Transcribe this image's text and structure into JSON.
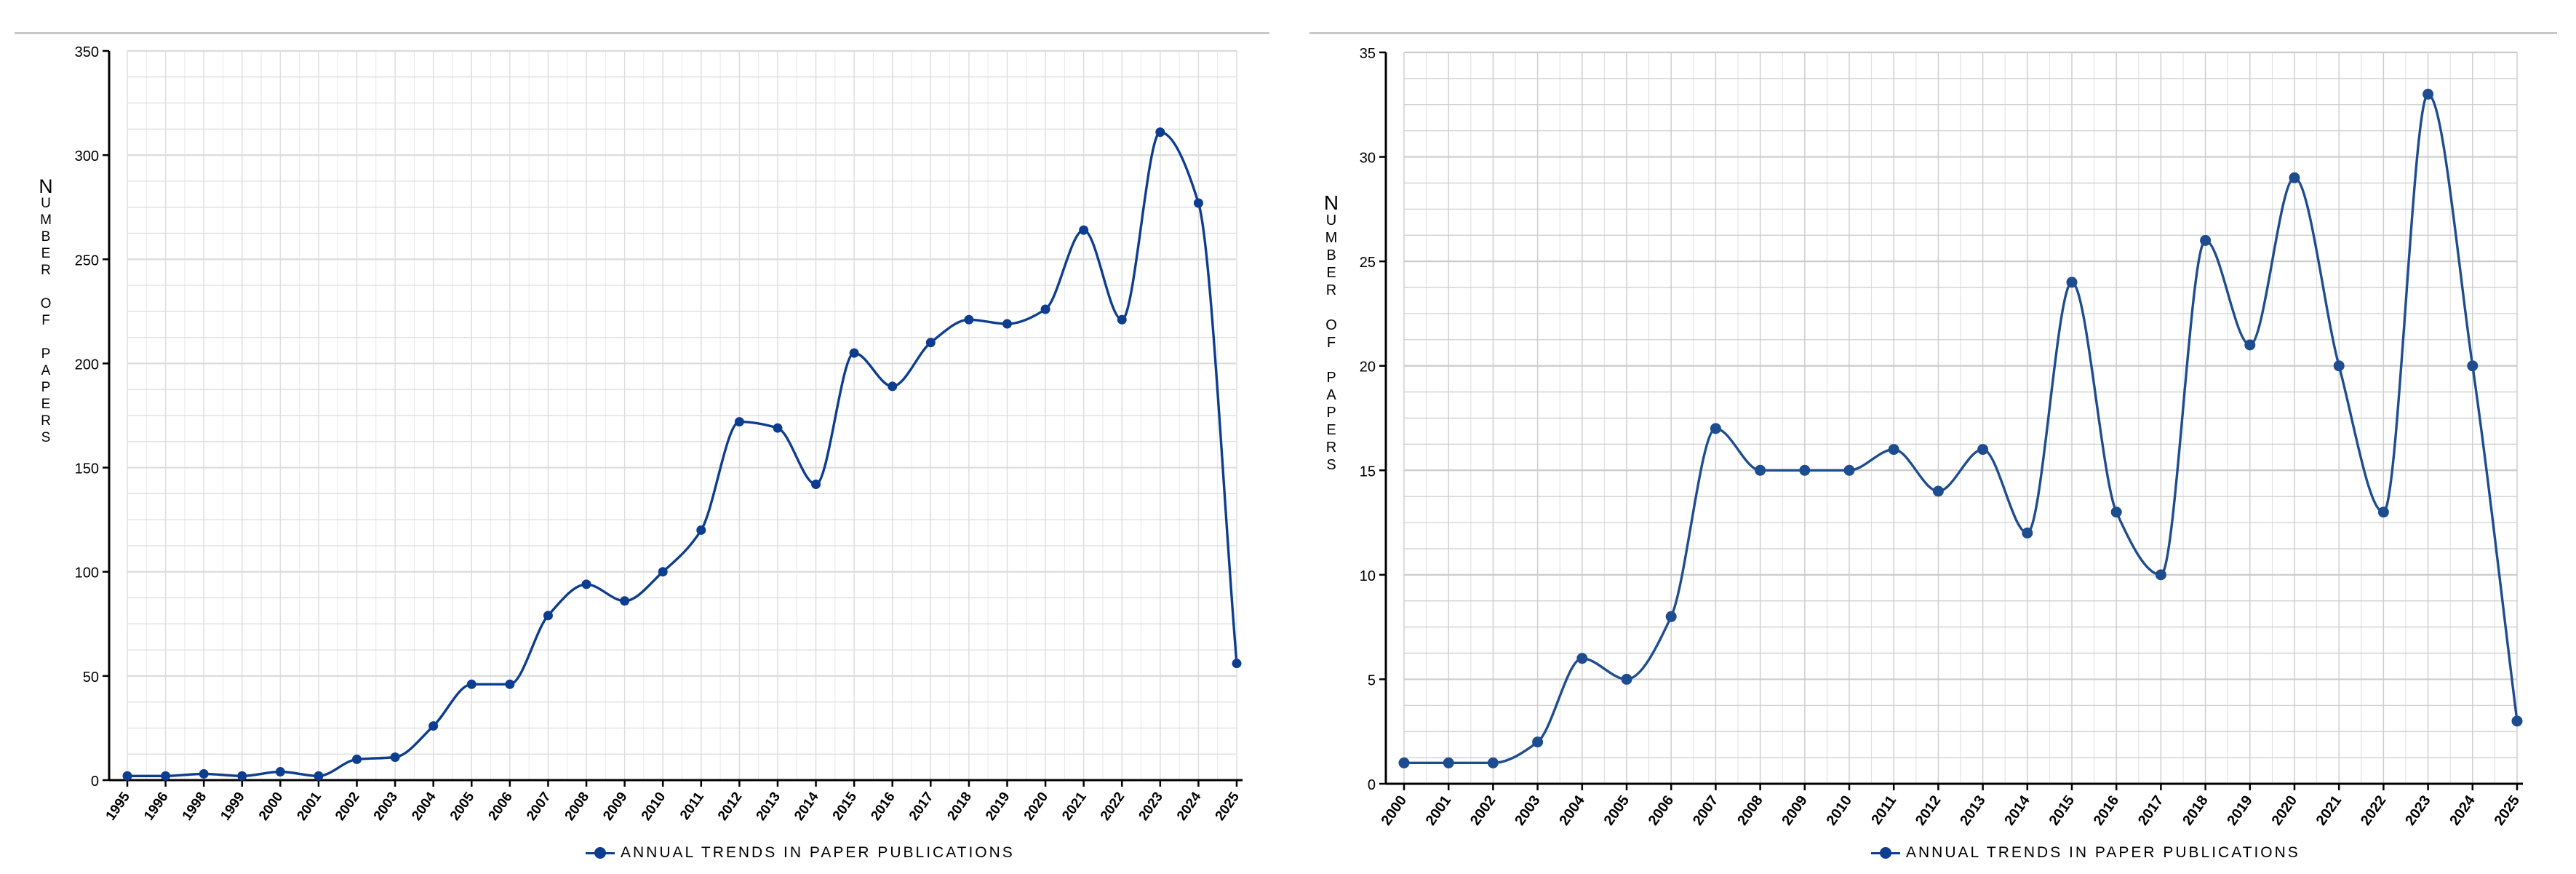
{
  "chart_data": [
    {
      "type": "line",
      "ylabel": "NUMBER OF PAPERS",
      "ylim": [
        0,
        350
      ],
      "yticks": [
        "0",
        "50",
        "100",
        "150",
        "200",
        "250",
        "300",
        "350"
      ],
      "x": [
        "1995",
        "1996",
        "1998",
        "1999",
        "2000",
        "2001",
        "2002",
        "2003",
        "2004",
        "2005",
        "2006",
        "2007",
        "2008",
        "2009",
        "2010",
        "2011",
        "2012",
        "2013",
        "2014",
        "2015",
        "2016",
        "2017",
        "2018",
        "2019",
        "2020",
        "2021",
        "2022",
        "2023",
        "2024",
        "2025"
      ],
      "series": [
        {
          "name": "ANNUAL TRENDS IN PAPER PUBLICATIONS",
          "values": [
            2,
            2,
            3,
            2,
            4,
            2,
            10,
            11,
            26,
            46,
            46,
            79,
            94,
            86,
            100,
            120,
            172,
            169,
            142,
            205,
            189,
            210,
            221,
            219,
            226,
            264,
            221,
            311,
            277,
            56
          ]
        }
      ],
      "grid": true,
      "legend_position": "bottom-center",
      "colors": {
        "line": "#0d3d8f",
        "grid": "#dcdcdc",
        "axis": "#000000"
      }
    },
    {
      "type": "line",
      "ylabel": "NUMBER OF PAPERS",
      "ylim": [
        0,
        35
      ],
      "yticks": [
        "0",
        "5",
        "10",
        "15",
        "20",
        "25",
        "30",
        "35"
      ],
      "x": [
        "2000",
        "2001",
        "2002",
        "2003",
        "2004",
        "2005",
        "2006",
        "2007",
        "2008",
        "2009",
        "2010",
        "2011",
        "2012",
        "2013",
        "2014",
        "2015",
        "2016",
        "2017",
        "2018",
        "2019",
        "2020",
        "2021",
        "2022",
        "2023",
        "2024",
        "2025"
      ],
      "series": [
        {
          "name": "ANNUAL TRENDS IN PAPER PUBLICATIONS",
          "values": [
            1,
            1,
            1,
            2,
            6,
            5,
            8,
            17,
            15,
            15,
            15,
            16,
            14,
            16,
            12,
            24,
            13,
            10,
            26,
            21,
            29,
            20,
            13,
            33,
            20,
            3
          ]
        }
      ],
      "grid": true,
      "legend_position": "bottom-center",
      "colors": {
        "line": "#1e4d8f",
        "grid": "#cccccc",
        "axis": "#000000"
      }
    }
  ]
}
